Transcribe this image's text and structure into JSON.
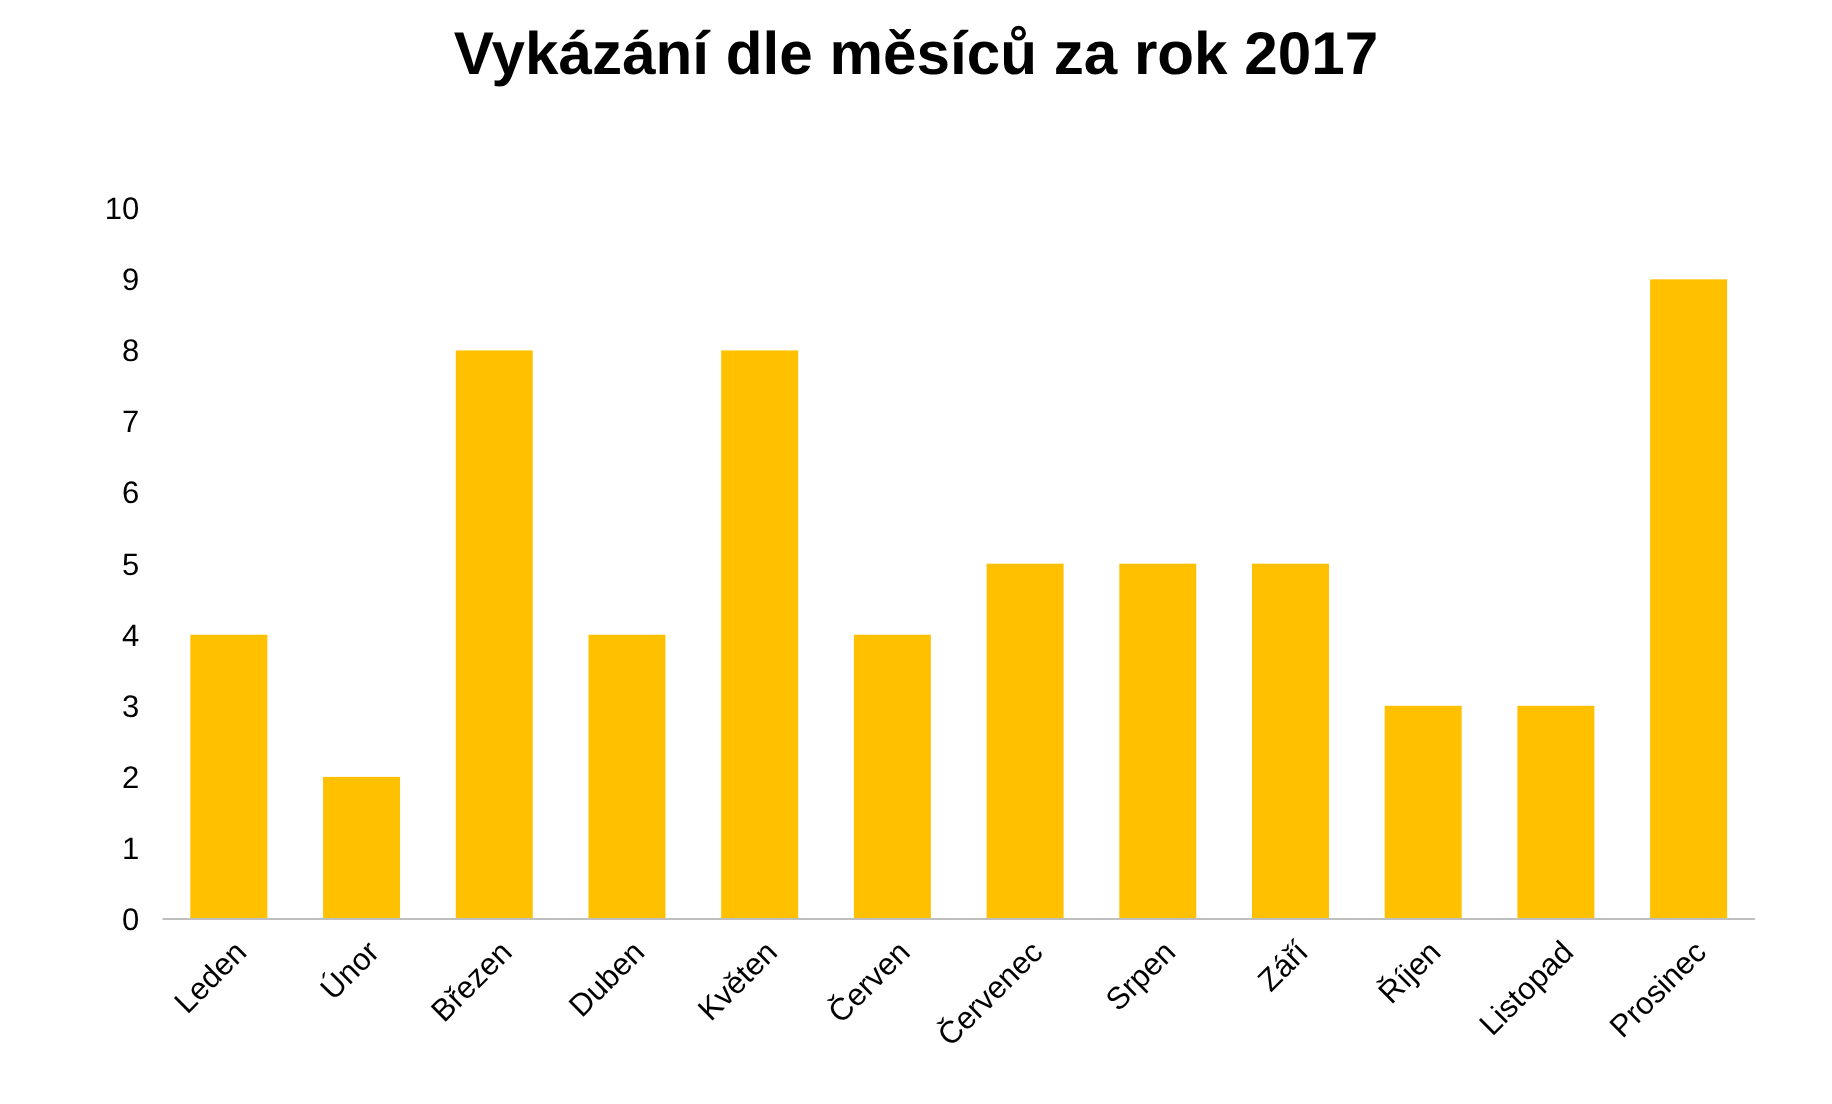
{
  "chart_data": {
    "type": "bar",
    "title": "Vykázání dle měsíců za rok 2017",
    "categories": [
      "Leden",
      "Únor",
      "Březen",
      "Duben",
      "Květen",
      "Červen",
      "Červenec",
      "Srpen",
      "Září",
      "Říjen",
      "Listopad",
      "Prosinec"
    ],
    "values": [
      4,
      2,
      8,
      4,
      8,
      4,
      5,
      5,
      5,
      3,
      3,
      9
    ],
    "color": "#ffc000",
    "ylim": [
      0,
      10
    ],
    "yticks": [
      0,
      1,
      2,
      3,
      4,
      5,
      6,
      7,
      8,
      9,
      10
    ],
    "grid": false
  }
}
